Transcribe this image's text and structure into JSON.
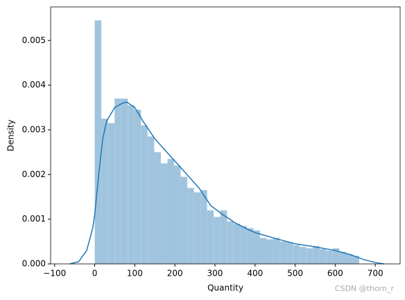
{
  "chart_data": {
    "type": "histogram",
    "x_label": "Quantity",
    "y_label": "Density",
    "bins": [
      0,
      16.5,
      33,
      49.5,
      66,
      82.5,
      99,
      115.5,
      132,
      148.5,
      165,
      181.5,
      198,
      214.5,
      231,
      247.5,
      264,
      280.5,
      297,
      313.5,
      330,
      346.5,
      363,
      379.5,
      396,
      412.5,
      429,
      445.5,
      462,
      478.5,
      495,
      511.5,
      528,
      544.5,
      561,
      577.5,
      594,
      610.5,
      627,
      643.5,
      660
    ],
    "values": [
      0.00545,
      0.00325,
      0.00315,
      0.0037,
      0.0037,
      0.00355,
      0.00345,
      0.0031,
      0.00285,
      0.0025,
      0.00225,
      0.00235,
      0.0022,
      0.00195,
      0.0017,
      0.0016,
      0.00165,
      0.0012,
      0.00105,
      0.0012,
      0.00095,
      0.0009,
      0.00085,
      0.0008,
      0.00075,
      0.00058,
      0.00055,
      0.00058,
      0.0005,
      0.00048,
      0.00042,
      0.00038,
      0.00035,
      0.0004,
      0.00033,
      0.0003,
      0.00035,
      0.00027,
      0.00022,
      0.00018
    ],
    "color": "#a1c4de",
    "kde": {
      "color": "#1f77b4",
      "x": [
        -62,
        -40,
        -20,
        -5,
        0,
        10,
        20,
        30,
        50,
        70,
        80,
        100,
        120,
        150,
        180,
        200,
        230,
        260,
        290,
        320,
        350,
        380,
        400,
        450,
        500,
        550,
        600,
        640,
        670,
        700,
        722
      ],
      "values": [
        0,
        5e-05,
        0.0003,
        0.0008,
        0.0011,
        0.002,
        0.0028,
        0.0032,
        0.0035,
        0.0036,
        0.00362,
        0.0035,
        0.0032,
        0.0028,
        0.0025,
        0.0023,
        0.002,
        0.0017,
        0.0013,
        0.0011,
        0.00092,
        0.00078,
        0.0007,
        0.00057,
        0.00045,
        0.00038,
        0.0003,
        0.0002,
        0.0001,
        3e-05,
        0
      ]
    },
    "xlim": [
      -110,
      762
    ],
    "ylim": [
      0,
      0.00575
    ],
    "xticks": [
      {
        "value": -100,
        "label": "−100"
      },
      0,
      100,
      200,
      300,
      400,
      500,
      600,
      700
    ],
    "yticks": [
      {
        "value": 0,
        "label": "0.000"
      },
      0.001,
      0.002,
      0.003,
      0.004,
      0.005
    ]
  },
  "watermark": "CSDN @thorn_r"
}
